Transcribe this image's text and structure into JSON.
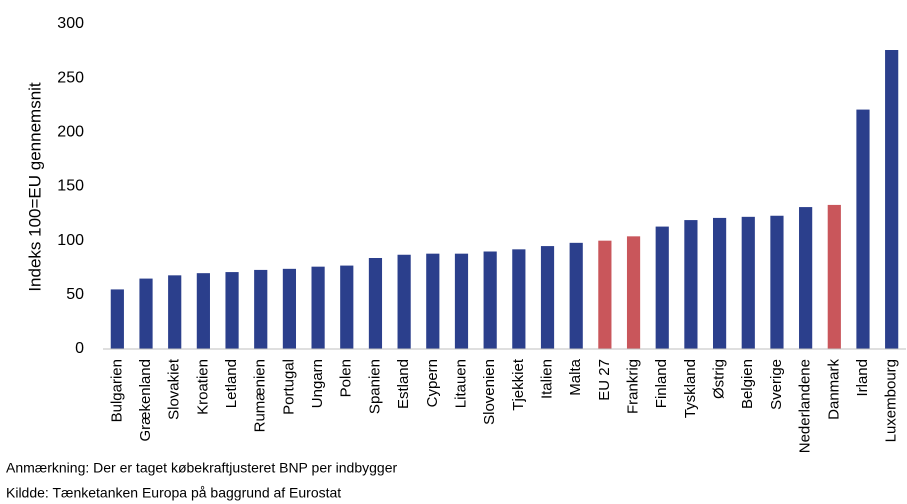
{
  "chart_data": {
    "type": "bar",
    "y_label": "Indeks 100=EU gennemsnit",
    "categories": [
      "Bulgarien",
      "Grækenland",
      "Slovakiet",
      "Kroatien",
      "Letland",
      "Rumænien",
      "Portugal",
      "Ungarn",
      "Polen",
      "Spanien",
      "Estland",
      "Cypern",
      "Litauen",
      "Slovenien",
      "Tjekkiet",
      "Italien",
      "Malta",
      "EU 27",
      "Frankrig",
      "Finland",
      "Tyskland",
      "Østrig",
      "Belgien",
      "Sverige",
      "Nederlandene",
      "Danmark",
      "Irland",
      "Luxembourg"
    ],
    "values": [
      55,
      65,
      68,
      70,
      71,
      73,
      74,
      76,
      77,
      84,
      87,
      88,
      88,
      90,
      92,
      95,
      98,
      100,
      104,
      113,
      119,
      121,
      122,
      123,
      131,
      133,
      221,
      276
    ],
    "colors": [
      "#2b3f8c",
      "#2b3f8c",
      "#2b3f8c",
      "#2b3f8c",
      "#2b3f8c",
      "#2b3f8c",
      "#2b3f8c",
      "#2b3f8c",
      "#2b3f8c",
      "#2b3f8c",
      "#2b3f8c",
      "#2b3f8c",
      "#2b3f8c",
      "#2b3f8c",
      "#2b3f8c",
      "#2b3f8c",
      "#2b3f8c",
      "#c9565b",
      "#c9565b",
      "#2b3f8c",
      "#2b3f8c",
      "#2b3f8c",
      "#2b3f8c",
      "#2b3f8c",
      "#2b3f8c",
      "#c9565b",
      "#2b3f8c",
      "#2b3f8c"
    ],
    "ylim": [
      0,
      300
    ],
    "yticks": [
      0,
      50,
      100,
      150,
      200,
      250,
      300
    ],
    "grid": false,
    "notes": [
      "Anmærkning: Der er taget købekraftjusteret BNP per indbygger",
      "Kildde: Tænketanken Europa på baggrund af Eurostat"
    ]
  }
}
